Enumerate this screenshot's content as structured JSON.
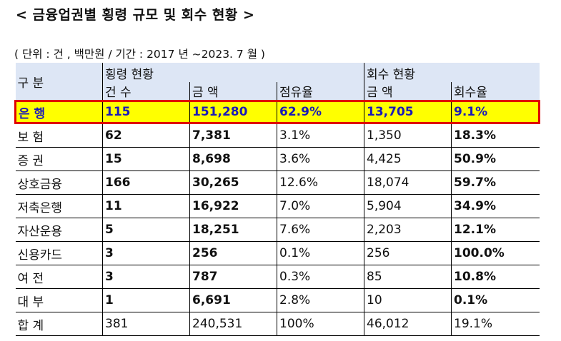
{
  "title": "< 금융업권별 횡령 규모 및 회수 현황 >",
  "unit_note": "( 단위 : 건 , 백만원 / 기간 : 2017 년 ~2023. 7 월 )",
  "header": {
    "row_label": "구 분",
    "group_embezzlement": "횡령 현황",
    "group_recovery": "회수 현황",
    "count": "건 수",
    "amount": "금 액",
    "share": "점유율",
    "recovered_amount": "금 액",
    "recovery_rate": "회수율"
  },
  "rows": [
    {
      "name": "은 행",
      "count": "115",
      "amount": "151,280",
      "share": "62.9%",
      "recovered": "13,705",
      "rate": "9.1%"
    },
    {
      "name": "보 험",
      "count": "62",
      "amount": "7,381",
      "share": "3.1%",
      "recovered": "1,350",
      "rate": "18.3%"
    },
    {
      "name": "증 권",
      "count": "15",
      "amount": "8,698",
      "share": "3.6%",
      "recovered": "4,425",
      "rate": "50.9%"
    },
    {
      "name": "상호금융",
      "count": "166",
      "amount": "30,265",
      "share": "12.6%",
      "recovered": "18,074",
      "rate": "59.7%"
    },
    {
      "name": "저축은행",
      "count": "11",
      "amount": "16,922",
      "share": "7.0%",
      "recovered": "5,904",
      "rate": "34.9%"
    },
    {
      "name": "자산운용",
      "count": "5",
      "amount": "18,251",
      "share": "7.6%",
      "recovered": "2,203",
      "rate": "12.1%"
    },
    {
      "name": "신용카드",
      "count": "3",
      "amount": "256",
      "share": "0.1%",
      "recovered": "256",
      "rate": "100.0%"
    },
    {
      "name": "여 전",
      "count": "3",
      "amount": "787",
      "share": "0.3%",
      "recovered": "85",
      "rate": "10.8%"
    },
    {
      "name": "대 부",
      "count": "1",
      "amount": "6,691",
      "share": "2.8%",
      "recovered": "10",
      "rate": "0.1%"
    },
    {
      "name": "합 계",
      "count": "381",
      "amount": "240,531",
      "share": "100%",
      "recovered": "46,012",
      "rate": "19.1%"
    }
  ],
  "colors": {
    "header_bg": "#dde6f5",
    "highlight_bg": "#ffff00",
    "highlight_border": "#e00000",
    "highlight_text": "#1a1ab8"
  }
}
